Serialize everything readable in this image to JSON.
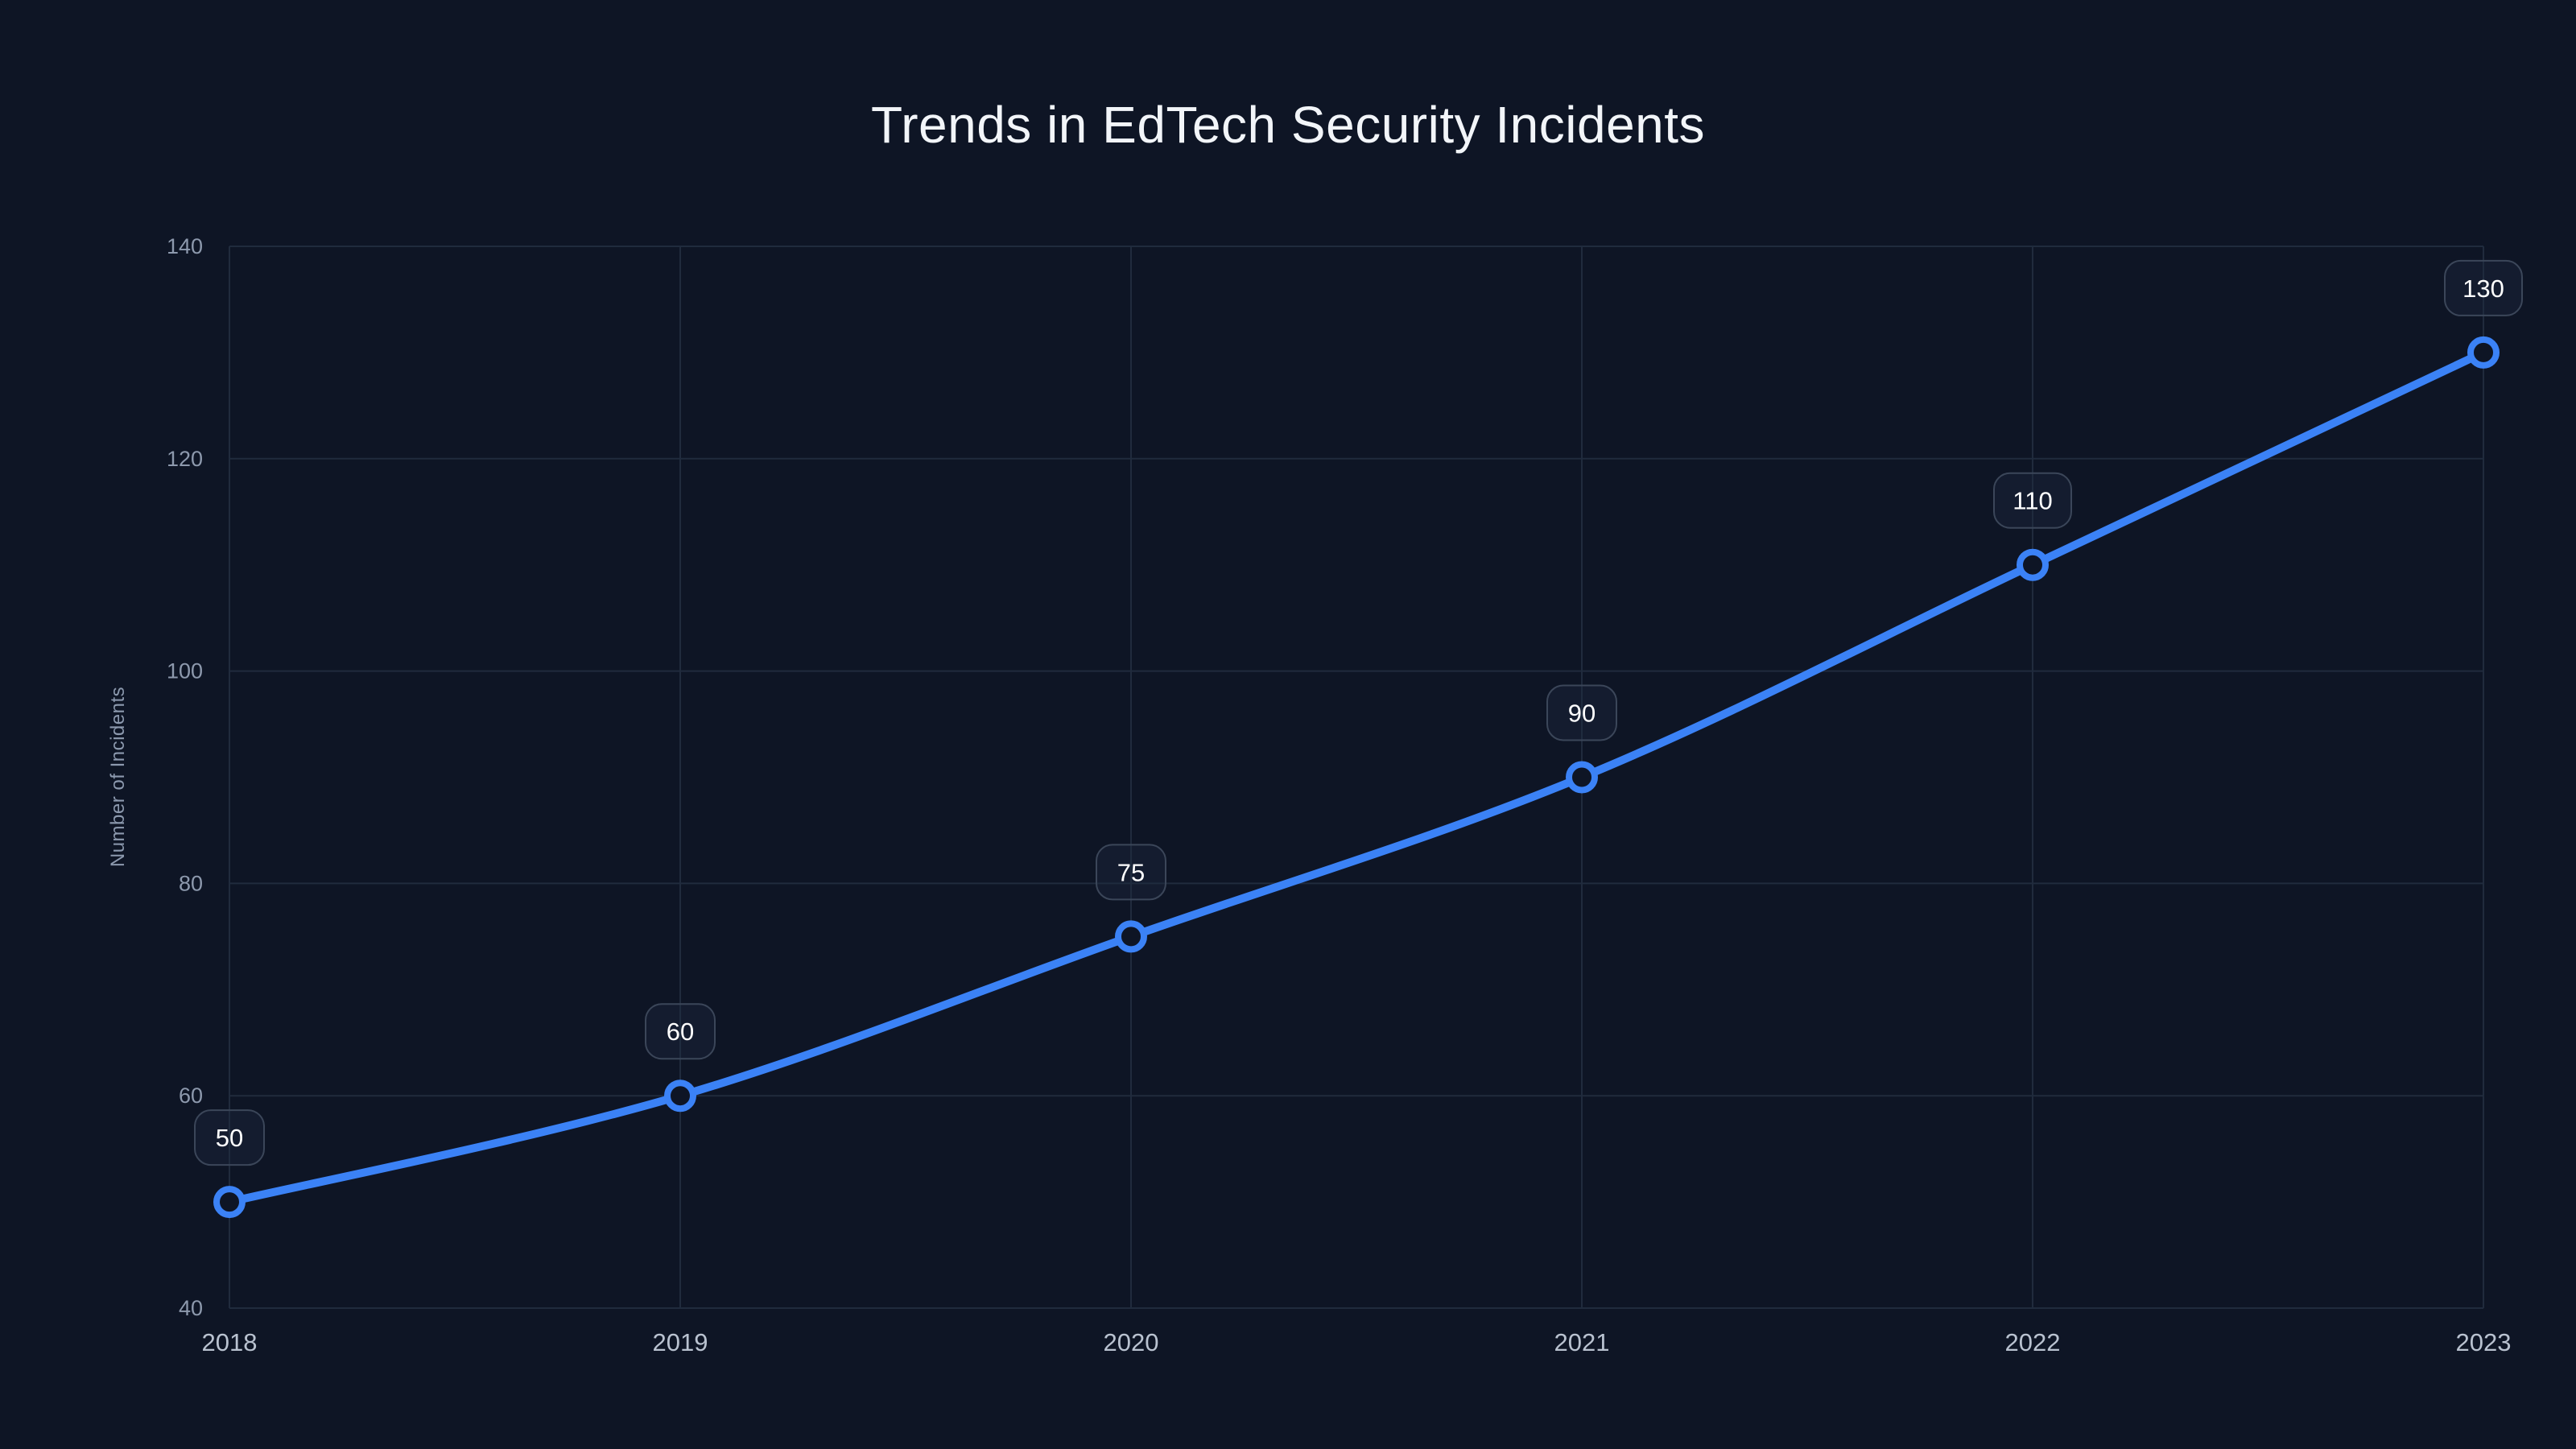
{
  "chart_data": {
    "type": "line",
    "title": "Trends in EdTech Security Incidents",
    "x": [
      "2018",
      "2019",
      "2020",
      "2021",
      "2022",
      "2023"
    ],
    "values": [
      50,
      60,
      75,
      90,
      110,
      130
    ],
    "point_labels": [
      "50",
      "60",
      "75",
      "90",
      "110",
      "130"
    ],
    "xlabel": "",
    "ylabel": "Number of Incidents",
    "ylim": [
      40,
      140
    ],
    "yticks": [
      40,
      60,
      80,
      100,
      120,
      140
    ],
    "grid": true,
    "legend_position": "none",
    "line_shape": "spline",
    "colors": {
      "background": "#0e1525",
      "line": "#3b82f6",
      "marker_ring": "#3b82f6",
      "marker_fill": "#0e1525",
      "gridline": "#202b3d",
      "y_tick_label": "#8d99ad",
      "x_tick_label": "#b9c2d0",
      "title": "#f2f5f9",
      "badge_border": "#3b4659",
      "badge_text": "#ffffff"
    }
  }
}
